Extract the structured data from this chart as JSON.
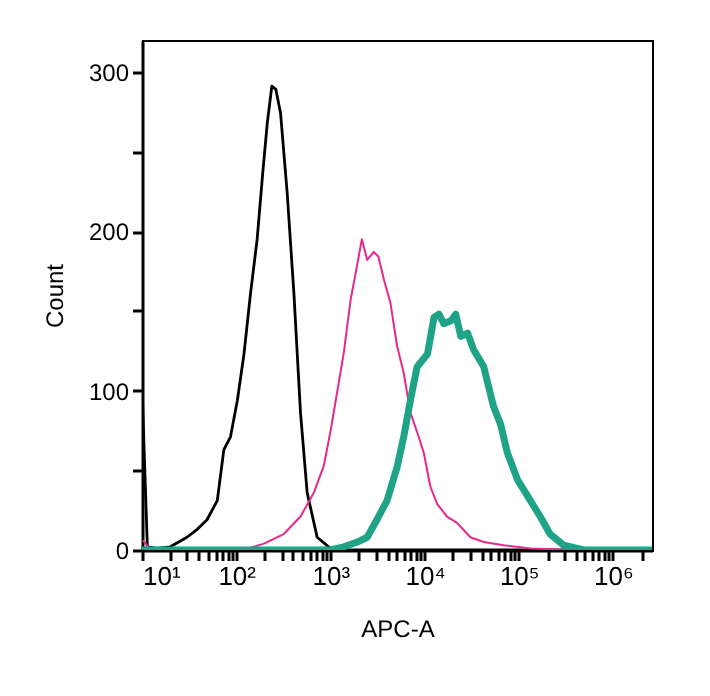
{
  "chart_data": {
    "type": "line",
    "xlabel": "APC-A",
    "ylabel": "Count",
    "log": "x",
    "grid": false,
    "marker": "none",
    "line_style": "solid",
    "xlim": [
      10,
      2600000
    ],
    "ylim": [
      0,
      320
    ],
    "xticks": [
      {
        "value": 10,
        "label": "10¹"
      },
      {
        "value": 20,
        "label": null
      },
      {
        "value": 30,
        "label": null
      },
      {
        "value": 40,
        "label": null
      },
      {
        "value": 50,
        "label": null
      },
      {
        "value": 60,
        "label": null
      },
      {
        "value": 70,
        "label": null
      },
      {
        "value": 80,
        "label": null
      },
      {
        "value": 90,
        "label": null
      },
      {
        "value": 100,
        "label": "10²"
      },
      {
        "value": 200,
        "label": null
      },
      {
        "value": 300,
        "label": null
      },
      {
        "value": 400,
        "label": null
      },
      {
        "value": 500,
        "label": null
      },
      {
        "value": 600,
        "label": null
      },
      {
        "value": 700,
        "label": null
      },
      {
        "value": 800,
        "label": null
      },
      {
        "value": 900,
        "label": null
      },
      {
        "value": 1000,
        "label": "10³"
      },
      {
        "value": 2000,
        "label": null
      },
      {
        "value": 3000,
        "label": null
      },
      {
        "value": 4000,
        "label": null
      },
      {
        "value": 5000,
        "label": null
      },
      {
        "value": 6000,
        "label": null
      },
      {
        "value": 7000,
        "label": null
      },
      {
        "value": 8000,
        "label": null
      },
      {
        "value": 9000,
        "label": null
      },
      {
        "value": 10000,
        "label": "10⁴"
      },
      {
        "value": 20000,
        "label": null
      },
      {
        "value": 30000,
        "label": null
      },
      {
        "value": 40000,
        "label": null
      },
      {
        "value": 50000,
        "label": null
      },
      {
        "value": 60000,
        "label": null
      },
      {
        "value": 70000,
        "label": null
      },
      {
        "value": 80000,
        "label": null
      },
      {
        "value": 90000,
        "label": null
      },
      {
        "value": 100000,
        "label": "10⁵"
      },
      {
        "value": 200000,
        "label": null
      },
      {
        "value": 300000,
        "label": null
      },
      {
        "value": 400000,
        "label": null
      },
      {
        "value": 500000,
        "label": null
      },
      {
        "value": 600000,
        "label": null
      },
      {
        "value": 700000,
        "label": null
      },
      {
        "value": 800000,
        "label": null
      },
      {
        "value": 900000,
        "label": null
      },
      {
        "value": 1000000,
        "label": "10⁶"
      },
      {
        "value": 2000000,
        "label": null
      }
    ],
    "yticks": [
      0,
      {
        "value": 50,
        "label": null
      },
      100,
      {
        "value": 150,
        "label": null
      },
      200,
      {
        "value": 250,
        "label": null
      },
      300
    ],
    "series": [
      {
        "color": "#000000",
        "x": [
          10,
          11.4,
          14.5,
          20,
          30,
          38.6,
          49,
          63,
          74,
          87,
          103,
          121,
          142,
          167,
          191,
          214,
          239,
          264,
          296,
          348,
          410,
          482,
          567,
          724,
          1000,
          1390,
          2600000
        ],
        "values": [
          103,
          2,
          1,
          2,
          8,
          13,
          19,
          31,
          63,
          71,
          94,
          123,
          161,
          195,
          236,
          268,
          291,
          289,
          274,
          224,
          161,
          86,
          36,
          8,
          1,
          0,
          0
        ]
      },
      {
        "color": "#e8288c",
        "x": [
          10.2,
          12.4,
          121,
          197,
          320,
          482,
          668,
          853,
          1000,
          1180,
          1390,
          1640,
          1860,
          2160,
          2460,
          2890,
          3240,
          3690,
          4340,
          5110,
          6010,
          7080,
          8340,
          9810,
          11500,
          13600,
          17300,
          22100,
          30700,
          42500,
          69200,
          133000,
          352000,
          2490000
        ],
        "values": [
          6,
          0,
          0,
          4,
          10,
          21,
          36,
          53,
          74,
          99,
          124,
          157,
          174,
          195,
          182,
          187,
          184,
          170,
          155,
          128,
          111,
          86,
          74,
          61,
          40,
          29,
          21,
          17,
          8,
          5,
          3,
          1,
          0,
          0
        ]
      },
      {
        "color": "#1fa386",
        "x": [
          10,
          1000,
          1390,
          1930,
          2460,
          3120,
          4000,
          5110,
          6010,
          7080,
          8340,
          10750,
          12600,
          14200,
          16000,
          19200,
          21400,
          24300,
          28700,
          33000,
          42500,
          54000,
          64100,
          75700,
          97300,
          133000,
          169000,
          215000,
          300000,
          488000,
          2600000
        ],
        "values": [
          0,
          0,
          2,
          5,
          8,
          19,
          31,
          52,
          71,
          94,
          115,
          123,
          146,
          148,
          142,
          144,
          148,
          134,
          136,
          126,
          115,
          90,
          79,
          61,
          44,
          31,
          21,
          10,
          3,
          0,
          0
        ]
      }
    ]
  }
}
